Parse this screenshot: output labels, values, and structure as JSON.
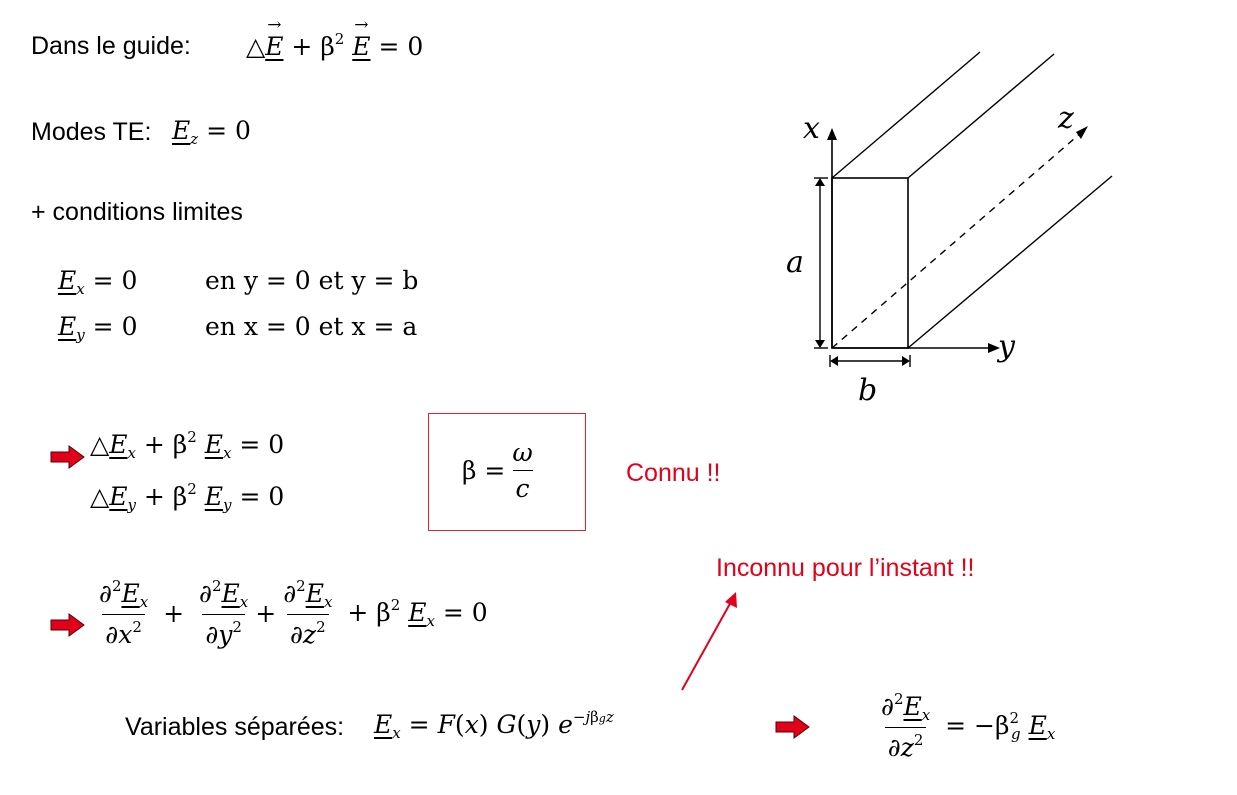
{
  "intro": {
    "label": "Dans le guide:"
  },
  "modes": {
    "label": "Modes TE:"
  },
  "conditions": {
    "label": "+ conditions limites"
  },
  "bc": {
    "ex_cond": "en y = 0 et y = b",
    "ey_cond": "en x = 0 et x = a"
  },
  "beta_box": {
    "lhs": "β =",
    "num": "ω",
    "den": "c"
  },
  "known": "Connu !!",
  "unknown": "Inconnu pour l’instant !!",
  "separated": {
    "label": "Variables séparées:"
  },
  "diagram": {
    "axis_x": "x",
    "axis_y": "y",
    "axis_z": "z",
    "dim_a": "a",
    "dim_b": "b"
  },
  "colors": {
    "red_text": "#e3001b",
    "box_border": "#d9272e",
    "arrow": "#e3001b"
  }
}
